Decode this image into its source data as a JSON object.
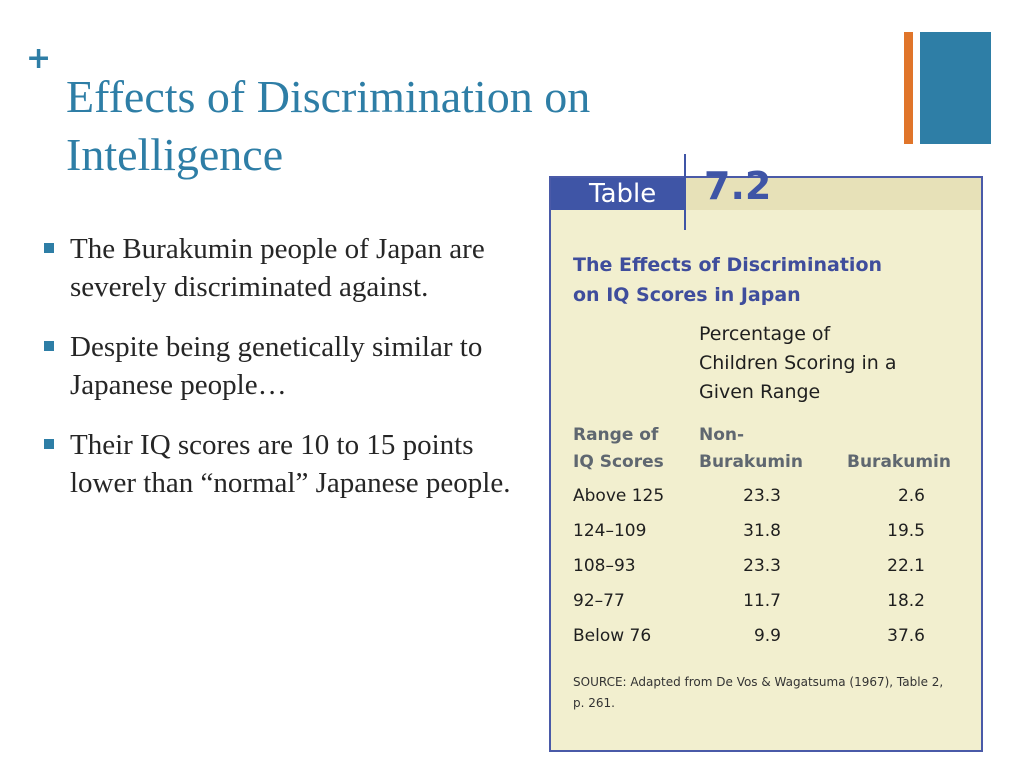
{
  "slide": {
    "plus": "+",
    "title_line1": "Effects of Discrimination on",
    "title_line2": "Intelligence",
    "bullets": [
      "The Burakumin people of Japan are severely discriminated against.",
      "Despite being genetically similar to Japanese people…",
      " Their IQ scores are 10 to 15 points lower than “normal” Japanese people."
    ],
    "accent_color": "#2e7ea6",
    "decoration_color": "#e0752a"
  },
  "table_figure": {
    "label_word": "Table",
    "label_number": "7.2",
    "title_line1": "The Effects of Discrimination",
    "title_line2": "on IQ Scores in Japan",
    "subheading_line1": "Percentage of",
    "subheading_line2": "Children Scoring in a",
    "subheading_line3": "Given Range",
    "col_range_line1": "Range of",
    "col_range_line2": "IQ Scores",
    "col_non_line1": "Non-",
    "col_non_line2": "Burakumin",
    "col_bur": "Burakumin",
    "rows": [
      {
        "range": "Above 125",
        "non_burakumin": "23.3",
        "burakumin": "2.6"
      },
      {
        "range": "124–109",
        "non_burakumin": "31.8",
        "burakumin": "19.5"
      },
      {
        "range": "108–93",
        "non_burakumin": "23.3",
        "burakumin": "22.1"
      },
      {
        "range": "92–77",
        "non_burakumin": "11.7",
        "burakumin": "18.2"
      },
      {
        "range": "Below 76",
        "non_burakumin": "9.9",
        "burakumin": "37.6"
      }
    ],
    "source_line1": "SOURCE: Adapted from De Vos & Wagatsuma (1967), Table 2,",
    "source_line2": "p. 261."
  }
}
